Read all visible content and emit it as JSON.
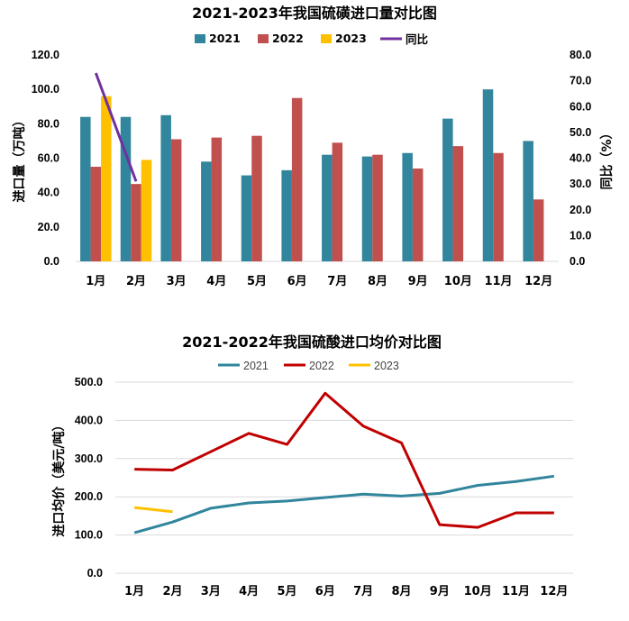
{
  "chart_data": [
    {
      "type": "bar",
      "title": "2021-2023年我国硫磺进口量对比图",
      "ylabel": "进口量（万吨）",
      "y2label": "同比（%）",
      "ylim": [
        0,
        120
      ],
      "y2lim": [
        0,
        80
      ],
      "yticks": [
        "0.0",
        "20.0",
        "40.0",
        "60.0",
        "80.0",
        "100.0",
        "120.0"
      ],
      "y2ticks": [
        "0.0",
        "10.0",
        "20.0",
        "30.0",
        "40.0",
        "50.0",
        "60.0",
        "70.0",
        "80.0"
      ],
      "categories": [
        "1月",
        "2月",
        "3月",
        "4月",
        "5月",
        "6月",
        "7月",
        "8月",
        "9月",
        "10月",
        "11月",
        "12月"
      ],
      "legend_position": "top",
      "grid": false,
      "series": [
        {
          "name": "2021",
          "color": "#31859C",
          "values": [
            84,
            84,
            85,
            58,
            50,
            53,
            62,
            61,
            63,
            83,
            100,
            70
          ]
        },
        {
          "name": "2022",
          "color": "#C0504D",
          "values": [
            55,
            45,
            71,
            72,
            73,
            95,
            69,
            62,
            54,
            67,
            63,
            36
          ]
        },
        {
          "name": "2023",
          "color": "#FFC000",
          "values": [
            96,
            59,
            null,
            null,
            null,
            null,
            null,
            null,
            null,
            null,
            null,
            null
          ]
        }
      ],
      "line_series": [
        {
          "name": "同比",
          "color": "#7030A0",
          "axis": "right",
          "values": [
            73,
            31,
            null,
            null,
            null,
            null,
            null,
            null,
            null,
            null,
            null,
            null
          ]
        }
      ]
    },
    {
      "type": "line",
      "title": "2021-2022年我国硫酸进口均价对比图",
      "ylabel": "进口均价（美元/吨）",
      "ylim": [
        0,
        500
      ],
      "yticks": [
        "0.0",
        "100.0",
        "200.0",
        "300.0",
        "400.0",
        "500.0"
      ],
      "categories": [
        "1月",
        "2月",
        "3月",
        "4月",
        "5月",
        "6月",
        "7月",
        "8月",
        "9月",
        "10月",
        "11月",
        "12月"
      ],
      "legend_position": "top",
      "grid": true,
      "series": [
        {
          "name": "2021",
          "color": "#31859C",
          "values": [
            106,
            134,
            170,
            184,
            189,
            198,
            207,
            202,
            209,
            230,
            240,
            254
          ]
        },
        {
          "name": "2022",
          "color": "#C00000",
          "values": [
            272,
            270,
            318,
            366,
            337,
            471,
            385,
            341,
            127,
            120,
            158,
            158
          ]
        },
        {
          "name": "2023",
          "color": "#FFC000",
          "values": [
            172,
            161,
            null,
            null,
            null,
            null,
            null,
            null,
            null,
            null,
            null,
            null
          ]
        }
      ]
    }
  ]
}
